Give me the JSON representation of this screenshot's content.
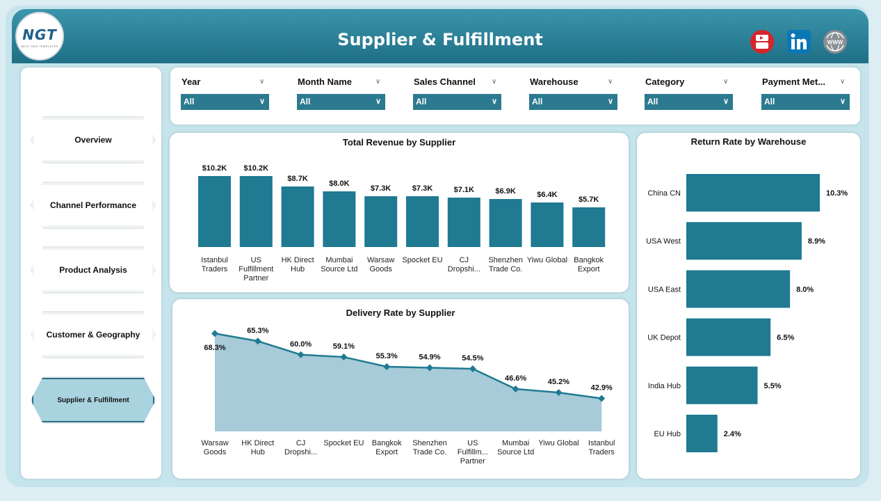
{
  "header": {
    "title": "Supplier & Fulfillment",
    "logo_text": "NGT",
    "logo_sub": "NEXT GEN TEMPLATES"
  },
  "icons": [
    "youtube-icon",
    "linkedin-icon",
    "website-globe-icon"
  ],
  "nav": {
    "items": [
      {
        "label": "Overview"
      },
      {
        "label": "Channel Performance"
      },
      {
        "label": "Product Analysis"
      },
      {
        "label": "Customer & Geography"
      },
      {
        "label": "Supplier & Fulfillment"
      }
    ],
    "active_index": 4
  },
  "filters": [
    {
      "label": "Year",
      "value": "All"
    },
    {
      "label": "Month Name",
      "value": "All"
    },
    {
      "label": "Sales Channel",
      "value": "All"
    },
    {
      "label": "Warehouse",
      "value": "All"
    },
    {
      "label": "Category",
      "value": "All"
    },
    {
      "label": "Payment Met...",
      "value": "All"
    }
  ],
  "colors": {
    "accent": "#1f7a92",
    "area_fill": "#a7cbd8",
    "header": "#2a8099",
    "active_nav": "#a9d4df"
  },
  "chart_data": [
    {
      "type": "bar",
      "title": "Total Revenue by Supplier",
      "categories": [
        "Istanbul Traders",
        "US Fulfillment Partner",
        "HK Direct Hub",
        "Mumbai Source Ltd",
        "Warsaw Goods",
        "Spocket EU",
        "CJ Dropshi...",
        "Shenzhen Trade Co.",
        "Yiwu Global",
        "Bangkok Export"
      ],
      "values": [
        10.2,
        10.2,
        8.7,
        8.0,
        7.3,
        7.3,
        7.1,
        6.9,
        6.4,
        5.7
      ],
      "labels": [
        "$10.2K",
        "$10.2K",
        "$8.7K",
        "$8.0K",
        "$7.3K",
        "$7.3K",
        "$7.1K",
        "$6.9K",
        "$6.4K",
        "$5.7K"
      ],
      "ylim": [
        0,
        11
      ]
    },
    {
      "type": "area",
      "title": "Delivery Rate by Supplier",
      "categories": [
        "Warsaw Goods",
        "HK Direct Hub",
        "CJ Dropshi...",
        "Spocket EU",
        "Bangkok Export",
        "Shenzhen Trade Co.",
        "US Fulfillm... Partner",
        "Mumbai Source Ltd",
        "Yiwu Global",
        "Istanbul Traders"
      ],
      "values": [
        68.3,
        65.3,
        60.0,
        59.1,
        55.3,
        54.9,
        54.5,
        46.6,
        45.2,
        42.9
      ],
      "labels": [
        "68.3%",
        "65.3%",
        "60.0%",
        "59.1%",
        "55.3%",
        "54.9%",
        "54.5%",
        "46.6%",
        "45.2%",
        "42.9%"
      ],
      "ylim": [
        30,
        70
      ]
    },
    {
      "type": "bar",
      "orientation": "horizontal",
      "title": "Return Rate by Warehouse",
      "categories": [
        "China CN",
        "USA West",
        "USA East",
        "UK Depot",
        "India Hub",
        "EU Hub"
      ],
      "values": [
        10.3,
        8.9,
        8.0,
        6.5,
        5.5,
        2.4
      ],
      "labels": [
        "10.3%",
        "8.9%",
        "8.0%",
        "6.5%",
        "5.5%",
        "2.4%"
      ],
      "xlim": [
        0,
        10.3
      ]
    }
  ]
}
